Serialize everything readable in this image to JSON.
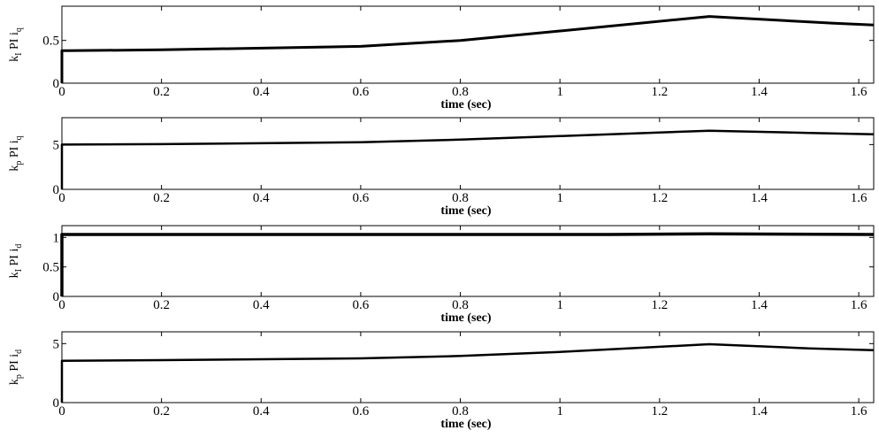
{
  "chart_data": [
    {
      "type": "line",
      "xlabel": "time (sec)",
      "ylabel": {
        "k": "k",
        "k_sub": "I",
        "mid": " PI i",
        "i_sub": "q"
      },
      "xlim": [
        0,
        1.63
      ],
      "ylim": [
        0,
        0.9
      ],
      "xticks": [
        "0",
        "0.2",
        "0.4",
        "0.6",
        "0.8",
        "1",
        "1.2",
        "1.4",
        "1.6"
      ],
      "yticks": [
        "0",
        "0.5"
      ],
      "series": [
        {
          "x": [
            0,
            0,
            0.01,
            0.2,
            0.6,
            0.8,
            1.0,
            1.3,
            1.55,
            1.63
          ],
          "y": [
            0,
            0.38,
            0.38,
            0.39,
            0.43,
            0.5,
            0.61,
            0.78,
            0.7,
            0.68
          ]
        }
      ]
    },
    {
      "type": "line",
      "xlabel": "time (sec)",
      "ylabel": {
        "k": "k",
        "k_sub": "p",
        "mid": " PI i",
        "i_sub": "q"
      },
      "xlim": [
        0,
        1.63
      ],
      "ylim": [
        0,
        8
      ],
      "xticks": [
        "0",
        "0.2",
        "0.4",
        "0.6",
        "0.8",
        "1",
        "1.2",
        "1.4",
        "1.6"
      ],
      "yticks": [
        "0",
        "5"
      ],
      "series": [
        {
          "x": [
            0,
            0,
            0.2,
            0.6,
            0.8,
            1.0,
            1.3,
            1.5,
            1.63
          ],
          "y": [
            0,
            5.0,
            5.05,
            5.25,
            5.55,
            5.95,
            6.55,
            6.3,
            6.15
          ]
        }
      ]
    },
    {
      "type": "line",
      "xlabel": "time (sec)",
      "ylabel": {
        "k": "k",
        "k_sub": "I",
        "mid": " PI i",
        "i_sub": "d"
      },
      "xlim": [
        0,
        1.63
      ],
      "ylim": [
        0,
        1.2
      ],
      "xticks": [
        "0",
        "0.2",
        "0.4",
        "0.6",
        "0.8",
        "1",
        "1.2",
        "1.4",
        "1.6"
      ],
      "yticks": [
        "0",
        "0.5",
        "1"
      ],
      "series": [
        {
          "x": [
            0,
            0,
            0.005,
            1.1,
            1.3,
            1.63
          ],
          "y": [
            0,
            1.05,
            1.05,
            1.05,
            1.06,
            1.05
          ]
        }
      ]
    },
    {
      "type": "line",
      "xlabel": "time (sec)",
      "ylabel": {
        "k": "k",
        "k_sub": "p",
        "mid": " PI i",
        "i_sub": "d"
      },
      "xlim": [
        0,
        1.63
      ],
      "ylim": [
        0,
        6
      ],
      "xticks": [
        "0",
        "0.2",
        "0.4",
        "0.6",
        "0.8",
        "1",
        "1.2",
        "1.4",
        "1.6"
      ],
      "yticks": [
        "0",
        "5"
      ],
      "series": [
        {
          "x": [
            0,
            0,
            0.2,
            0.6,
            0.8,
            1.0,
            1.3,
            1.5,
            1.63
          ],
          "y": [
            0,
            3.55,
            3.6,
            3.75,
            3.95,
            4.3,
            4.95,
            4.6,
            4.45
          ]
        }
      ]
    }
  ]
}
